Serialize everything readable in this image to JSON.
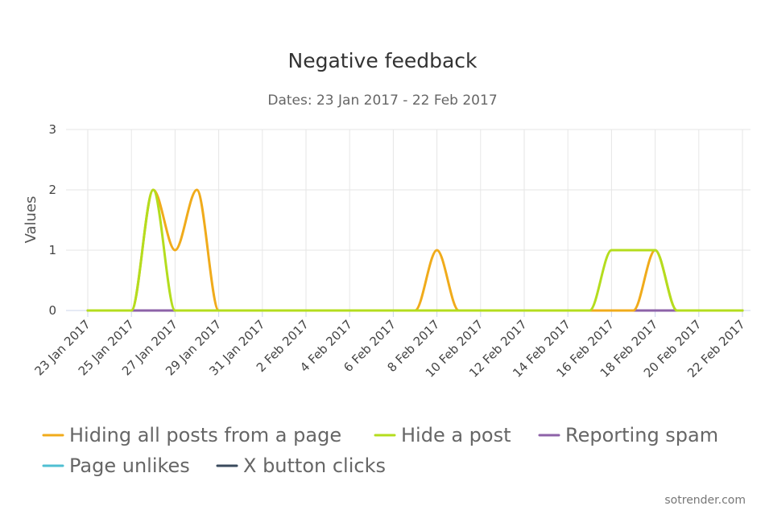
{
  "chart_data": {
    "type": "line",
    "title": "Negative feedback",
    "subtitle": "Dates: 23 Jan 2017 - 22 Feb 2017",
    "ylabel": "Values",
    "xlabel": "",
    "ylim": [
      0,
      3
    ],
    "y_ticks": [
      "0",
      "1",
      "2",
      "3"
    ],
    "x": [
      "23 Jan 2017",
      "24 Jan 2017",
      "25 Jan 2017",
      "26 Jan 2017",
      "27 Jan 2017",
      "28 Jan 2017",
      "29 Jan 2017",
      "30 Jan 2017",
      "31 Jan 2017",
      "1 Feb 2017",
      "2 Feb 2017",
      "3 Feb 2017",
      "4 Feb 2017",
      "5 Feb 2017",
      "6 Feb 2017",
      "7 Feb 2017",
      "8 Feb 2017",
      "9 Feb 2017",
      "10 Feb 2017",
      "11 Feb 2017",
      "12 Feb 2017",
      "13 Feb 2017",
      "14 Feb 2017",
      "15 Feb 2017",
      "16 Feb 2017",
      "17 Feb 2017",
      "18 Feb 2017",
      "19 Feb 2017",
      "20 Feb 2017",
      "21 Feb 2017",
      "22 Feb 2017"
    ],
    "x_tick_labels": [
      "23 Jan 2017",
      "25 Jan 2017",
      "27 Jan 2017",
      "29 Jan 2017",
      "31 Jan 2017",
      "2 Feb 2017",
      "4 Feb 2017",
      "6 Feb 2017",
      "8 Feb 2017",
      "10 Feb 2017",
      "12 Feb 2017",
      "14 Feb 2017",
      "16 Feb 2017",
      "18 Feb 2017",
      "20 Feb 2017",
      "22 Feb 2017"
    ],
    "grid": true,
    "legend_position": "bottom",
    "series": [
      {
        "name": "Hiding all posts from a page",
        "color": "#f0ab1b",
        "values": [
          0,
          0,
          0,
          2,
          1,
          2,
          0,
          0,
          0,
          0,
          0,
          0,
          0,
          0,
          0,
          0,
          1,
          0,
          0,
          0,
          0,
          0,
          0,
          0,
          0,
          0,
          1,
          0,
          0,
          0,
          0
        ]
      },
      {
        "name": "Hide a post",
        "color": "#b4dd1e",
        "values": [
          0,
          0,
          0,
          2,
          0,
          0,
          0,
          0,
          0,
          0,
          0,
          0,
          0,
          0,
          0,
          0,
          0,
          0,
          0,
          0,
          0,
          0,
          0,
          0,
          1,
          1,
          1,
          0,
          0,
          0,
          0
        ]
      },
      {
        "name": "Reporting spam",
        "color": "#8d62a8",
        "values": [
          0,
          0,
          0,
          0,
          0,
          0,
          0,
          0,
          0,
          0,
          0,
          0,
          0,
          0,
          0,
          0,
          0,
          0,
          0,
          0,
          0,
          0,
          0,
          0,
          0,
          0,
          0,
          0,
          0,
          0,
          0
        ]
      },
      {
        "name": "Page unlikes",
        "color": "#4fbfd2",
        "values": [
          0,
          0,
          0,
          0,
          0,
          0,
          0,
          0,
          0,
          0,
          0,
          0,
          0,
          0,
          0,
          0,
          0,
          0,
          0,
          0,
          0,
          0,
          0,
          0,
          0,
          0,
          0,
          0,
          0,
          0,
          0
        ]
      },
      {
        "name": "X button clicks",
        "color": "#3a4a5c",
        "values": [
          0,
          0,
          0,
          0,
          0,
          0,
          0,
          0,
          0,
          0,
          0,
          0,
          0,
          0,
          0,
          0,
          0,
          0,
          0,
          0,
          0,
          0,
          0,
          0,
          0,
          0,
          0,
          0,
          0,
          0,
          0
        ]
      }
    ]
  },
  "credit": "sotrender.com"
}
